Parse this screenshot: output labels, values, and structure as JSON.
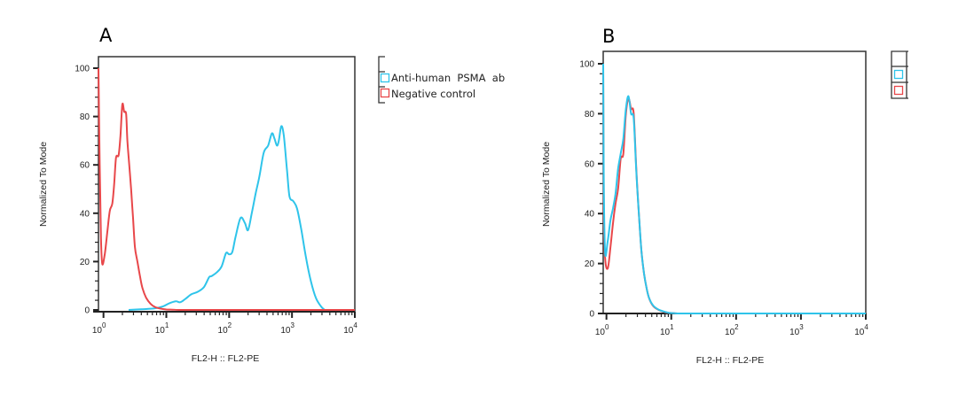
{
  "figure": {
    "panels": [
      {
        "letter": "A"
      },
      {
        "letter": "B"
      }
    ]
  },
  "colors": {
    "anti_psma": "#2fc4ea",
    "negative_control": "#e8474a",
    "axis": "#222222",
    "frame": "#333333"
  },
  "chart_data": [
    {
      "panel": "A",
      "type": "line",
      "title": "",
      "xlabel": "FL2-H :: FL2-PE",
      "ylabel": "Normalized To Mode",
      "xscale": "log",
      "xlim_log10": [
        -0.08,
        4
      ],
      "ylim": [
        0,
        100
      ],
      "xticks": [
        {
          "exp": 0,
          "label_base": "10",
          "label_exp": "0"
        },
        {
          "exp": 1,
          "label_base": "10",
          "label_exp": "1"
        },
        {
          "exp": 2,
          "label_base": "10",
          "label_exp": "2"
        },
        {
          "exp": 3,
          "label_base": "10",
          "label_exp": "3"
        },
        {
          "exp": 4,
          "label_base": "10",
          "label_exp": "4"
        }
      ],
      "yticks": [
        "0",
        "20",
        "40",
        "60",
        "80",
        "100"
      ],
      "legend": {
        "placement": "right-outside",
        "entries": [
          {
            "label": "Anti-human  PSMA  ab",
            "color_key": "anti_psma"
          },
          {
            "label": "Negative control",
            "color_key": "negative_control"
          }
        ]
      },
      "series": [
        {
          "name": "Anti-human PSMA ab",
          "color_key": "anti_psma",
          "log10_x": [
            0.4,
            0.6,
            0.8,
            0.95,
            1.05,
            1.15,
            1.22,
            1.3,
            1.4,
            1.5,
            1.6,
            1.68,
            1.72,
            1.8,
            1.88,
            1.95,
            2.0,
            2.05,
            2.1,
            2.18,
            2.25,
            2.3,
            2.36,
            2.42,
            2.48,
            2.55,
            2.62,
            2.68,
            2.72,
            2.76,
            2.79,
            2.83,
            2.87,
            2.92,
            2.96,
            3.02,
            3.08,
            3.15,
            3.22,
            3.3,
            3.38,
            3.46,
            3.52
          ],
          "y": [
            0,
            0.3,
            0.6,
            1.5,
            2.8,
            3.6,
            3.2,
            4.5,
            6.5,
            7.5,
            9.5,
            13.5,
            14,
            15.5,
            18,
            23.5,
            23,
            24,
            30,
            38,
            36,
            33,
            40,
            48,
            55,
            65,
            68,
            73,
            71,
            68,
            70,
            76,
            72,
            58,
            47,
            45,
            42,
            33,
            22,
            12,
            5,
            1.5,
            0
          ]
        },
        {
          "name": "Negative control",
          "color_key": "negative_control",
          "log10_x": [
            -0.08,
            -0.06,
            -0.04,
            -0.02,
            0.02,
            0.06,
            0.1,
            0.14,
            0.17,
            0.2,
            0.24,
            0.27,
            0.3,
            0.33,
            0.36,
            0.38,
            0.41,
            0.44,
            0.47,
            0.5,
            0.54,
            0.58,
            0.62,
            0.68,
            0.75,
            0.82,
            0.9,
            1.0,
            1.1,
            1.2
          ],
          "y": [
            100,
            60,
            30,
            19,
            23,
            32,
            41,
            44,
            52,
            63,
            64,
            72,
            85,
            82,
            81,
            70,
            60,
            50,
            38,
            26,
            20,
            14,
            9,
            5,
            2.5,
            1.2,
            0.6,
            0.2,
            0.1,
            0
          ]
        }
      ]
    },
    {
      "panel": "B",
      "type": "line",
      "title": "",
      "xlabel": "FL2-H :: FL2-PE",
      "ylabel": "Normalized To Mode",
      "xscale": "log",
      "xlim_log10": [
        -0.05,
        4
      ],
      "ylim": [
        0,
        100
      ],
      "xticks": [
        {
          "exp": 0,
          "label_base": "10",
          "label_exp": "0"
        },
        {
          "exp": 1,
          "label_base": "10",
          "label_exp": "1"
        },
        {
          "exp": 2,
          "label_base": "10",
          "label_exp": "2"
        },
        {
          "exp": 3,
          "label_base": "10",
          "label_exp": "3"
        },
        {
          "exp": 4,
          "label_base": "10",
          "label_exp": "4"
        }
      ],
      "yticks": [
        "0",
        "20",
        "40",
        "60",
        "80",
        "100"
      ],
      "legend": {
        "placement": "right-outside",
        "entries": [
          {
            "label": "",
            "color_key": "anti_psma"
          },
          {
            "label": "",
            "color_key": "negative_control"
          }
        ]
      },
      "series": [
        {
          "name": "Negative control",
          "color_key": "negative_control",
          "log10_x": [
            -0.05,
            -0.04,
            -0.02,
            0.02,
            0.06,
            0.1,
            0.14,
            0.18,
            0.22,
            0.26,
            0.3,
            0.34,
            0.38,
            0.42,
            0.46,
            0.5,
            0.54,
            0.58,
            0.62,
            0.66,
            0.72,
            0.8,
            0.88,
            0.96,
            1.05,
            1.12
          ],
          "y": [
            100,
            40,
            22,
            18,
            26,
            36,
            44,
            50,
            62,
            64,
            80,
            86,
            82,
            80,
            58,
            40,
            25,
            16,
            10,
            6,
            3,
            1.5,
            0.7,
            0.3,
            0.1,
            0
          ]
        },
        {
          "name": "Anti-human PSMA ab",
          "color_key": "anti_psma",
          "log10_x": [
            -0.05,
            -0.04,
            -0.02,
            0.02,
            0.06,
            0.1,
            0.14,
            0.18,
            0.22,
            0.26,
            0.3,
            0.34,
            0.38,
            0.42,
            0.46,
            0.5,
            0.54,
            0.58,
            0.62,
            0.66,
            0.72,
            0.8,
            0.88,
            0.96,
            1.05,
            1.12
          ],
          "y": [
            100,
            50,
            24,
            29,
            37,
            42,
            48,
            58,
            64,
            70,
            82,
            87,
            80,
            78,
            57,
            40,
            25,
            16,
            10,
            6,
            3.2,
            1.6,
            0.8,
            0.3,
            0.1,
            0
          ]
        }
      ]
    }
  ]
}
